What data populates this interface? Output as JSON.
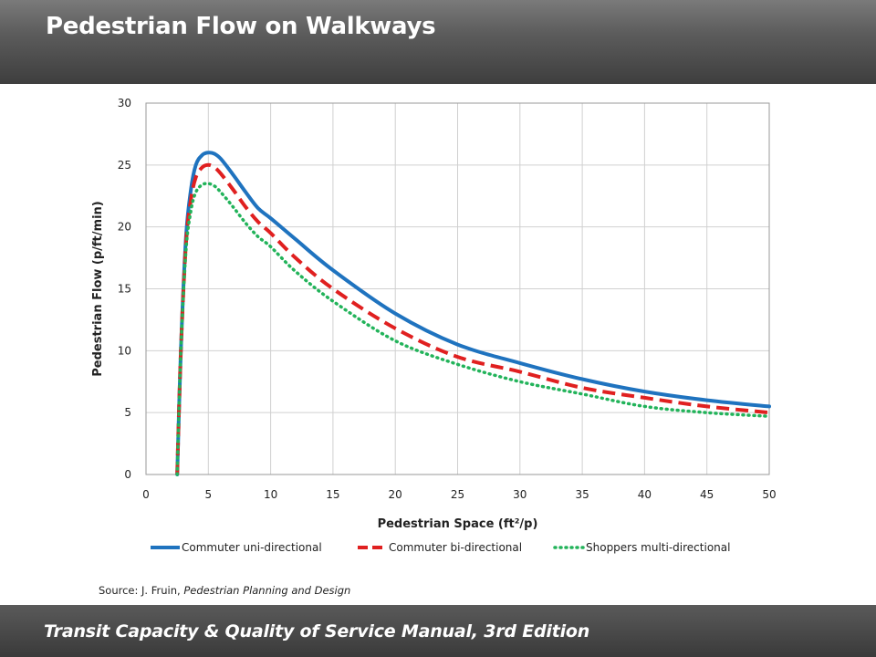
{
  "header": {
    "title": "Pedestrian Flow on Walkways"
  },
  "footer": {
    "text": "Transit Capacity & Quality of Service Manual, 3rd Edition"
  },
  "source": {
    "prefix": "Source: J. Fruin, ",
    "work": "Pedestrian Planning and Design"
  },
  "chart_data": {
    "type": "line",
    "xlabel": "Pedestrian Space (ft²/p)",
    "ylabel": "Pedestrian Flow (p/ft/min)",
    "xlim": [
      0,
      50
    ],
    "ylim": [
      0,
      30
    ],
    "xticks": [
      0,
      5,
      10,
      15,
      20,
      25,
      30,
      35,
      40,
      45,
      50
    ],
    "yticks": [
      0,
      5,
      10,
      15,
      20,
      25,
      30
    ],
    "grid": true,
    "legend_position": "bottom",
    "series": [
      {
        "name": "Commuter uni-directional",
        "color": "#1f73bf",
        "style": "solid",
        "x": [
          2.5,
          2.8,
          3.2,
          3.6,
          4.0,
          4.5,
          5.0,
          5.5,
          6.0,
          7.0,
          8.0,
          9.0,
          10.0,
          12.0,
          15.0,
          20.0,
          25.0,
          30.0,
          35.0,
          40.0,
          45.0,
          50.0
        ],
        "y": [
          0,
          10,
          19,
          23,
          25,
          25.8,
          26.0,
          25.9,
          25.5,
          24.2,
          22.8,
          21.5,
          20.7,
          19.0,
          16.5,
          13.0,
          10.5,
          9.0,
          7.7,
          6.7,
          6.0,
          5.5
        ]
      },
      {
        "name": "Commuter bi-directional",
        "color": "#e02020",
        "style": "dashed",
        "x": [
          2.5,
          2.8,
          3.2,
          3.6,
          4.0,
          4.5,
          5.0,
          5.5,
          6.0,
          7.0,
          8.0,
          9.0,
          10.0,
          12.0,
          15.0,
          20.0,
          25.0,
          30.0,
          35.0,
          40.0,
          45.0,
          50.0
        ],
        "y": [
          0,
          10,
          18.5,
          22.2,
          24.0,
          24.8,
          25.0,
          24.8,
          24.3,
          23.0,
          21.6,
          20.4,
          19.5,
          17.5,
          15.0,
          11.8,
          9.5,
          8.3,
          7.0,
          6.2,
          5.5,
          5.0
        ]
      },
      {
        "name": "Shoppers multi-directional",
        "color": "#22b35a",
        "style": "dotted",
        "x": [
          2.5,
          2.8,
          3.2,
          3.6,
          4.0,
          4.5,
          5.0,
          5.5,
          6.0,
          7.0,
          8.0,
          9.0,
          10.0,
          12.0,
          15.0,
          20.0,
          25.0,
          30.0,
          35.0,
          40.0,
          45.0,
          50.0
        ],
        "y": [
          0,
          10,
          18,
          21.3,
          22.8,
          23.4,
          23.5,
          23.3,
          22.8,
          21.6,
          20.3,
          19.2,
          18.4,
          16.4,
          14.0,
          10.8,
          8.9,
          7.5,
          6.5,
          5.5,
          5.0,
          4.7
        ]
      }
    ]
  }
}
